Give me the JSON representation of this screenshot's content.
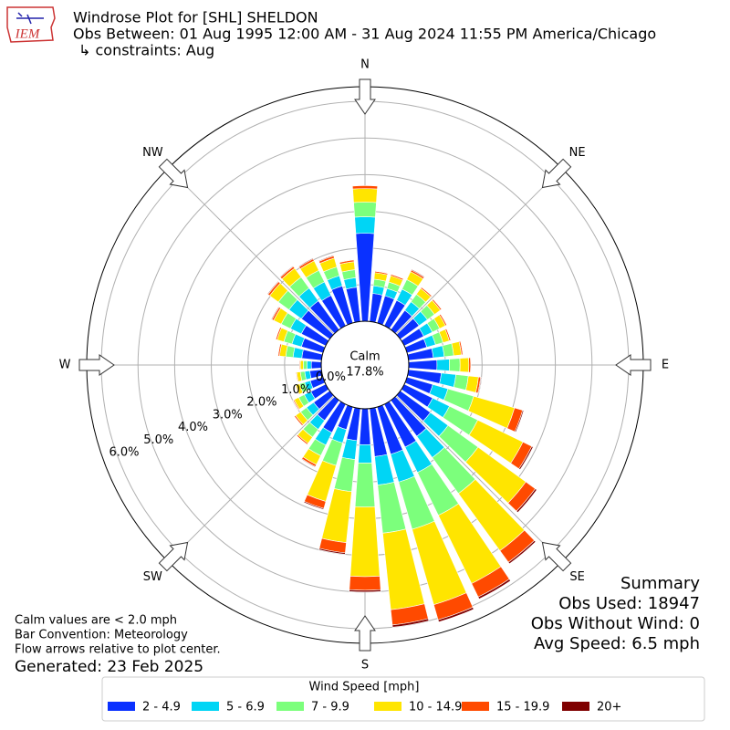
{
  "chart_data": {
    "type": "windrose",
    "title": "Windrose Plot for [SHL] SHELDON",
    "subtitle": "Obs Between: 01 Aug 1995 12:00 AM - 31 Aug 2024 11:55 PM America/Chicago",
    "constraints": "↳ constraints: Aug",
    "logo": "IEM",
    "compass_labels": [
      "N",
      "NE",
      "E",
      "SE",
      "S",
      "SW",
      "W",
      "NW"
    ],
    "rlim": [
      0,
      6.4
    ],
    "rticks": [
      {
        "value": 0,
        "label": "0.0%"
      },
      {
        "value": 1,
        "label": "1.0%"
      },
      {
        "value": 2,
        "label": "2.0%"
      },
      {
        "value": 3,
        "label": "3.0%"
      },
      {
        "value": 4,
        "label": "4.0%"
      },
      {
        "value": 5,
        "label": "5.0%"
      },
      {
        "value": 6,
        "label": "6.0%"
      }
    ],
    "grid": true,
    "calm": {
      "label": "Calm",
      "value": 17.8,
      "value_label": "17.8%"
    },
    "legend_title": "Wind Speed [mph]",
    "series": [
      {
        "name": "2 - 4.9",
        "color": "#0a31ff",
        "values": [
          2.4,
          0.77,
          0.77,
          0.77,
          0.65,
          0.63,
          0.59,
          0.56,
          0.68,
          0.77,
          0.9,
          0.73,
          0.86,
          1.01,
          1.21,
          1.3,
          1.34,
          1.32,
          0.98,
          0.88,
          0.64,
          0.86,
          0.68,
          0.54,
          0.45,
          0.36,
          0.32,
          0.27,
          0.54,
          0.61,
          0.74,
          0.95,
          0.97,
          0.92,
          1.05,
          0.94
        ]
      },
      {
        "name": "5 - 6.9",
        "color": "#00d5f5",
        "values": [
          0.45,
          0.21,
          0.21,
          0.34,
          0.29,
          0.28,
          0.26,
          0.25,
          0.3,
          0.34,
          0.4,
          0.43,
          0.51,
          0.6,
          0.72,
          0.77,
          0.79,
          0.78,
          0.5,
          0.52,
          0.38,
          0.38,
          0.3,
          0.24,
          0.2,
          0.16,
          0.14,
          0.12,
          0.24,
          0.27,
          0.33,
          0.42,
          0.43,
          0.41,
          0.29,
          0.26
        ]
      },
      {
        "name": "7 - 9.9",
        "color": "#7cff7c",
        "values": [
          0.4,
          0.18,
          0.18,
          0.29,
          0.25,
          0.24,
          0.22,
          0.21,
          0.26,
          0.29,
          0.34,
          0.73,
          0.86,
          1.01,
          1.21,
          1.3,
          1.34,
          1.32,
          1.2,
          0.88,
          0.64,
          0.32,
          0.26,
          0.2,
          0.17,
          0.14,
          0.12,
          0.1,
          0.2,
          0.23,
          0.28,
          0.36,
          0.37,
          0.35,
          0.25,
          0.22
        ]
      },
      {
        "name": "10 - 14.9",
        "color": "#ffe500",
        "values": [
          0.37,
          0.18,
          0.18,
          0.24,
          0.2,
          0.2,
          0.18,
          0.18,
          0.21,
          0.24,
          0.28,
          1.16,
          1.37,
          1.61,
          1.93,
          2.07,
          2.14,
          2.1,
          1.9,
          1.4,
          1.02,
          0.27,
          0.21,
          0.17,
          0.14,
          0.11,
          0.1,
          0.08,
          0.17,
          0.19,
          0.23,
          0.29,
          0.3,
          0.29,
          0.25,
          0.22
        ]
      },
      {
        "name": "15 - 19.9",
        "color": "#ff4a00",
        "values": [
          0.08,
          0.04,
          0.04,
          0.05,
          0.04,
          0.04,
          0.04,
          0.04,
          0.04,
          0.05,
          0.06,
          0.23,
          0.27,
          0.32,
          0.39,
          0.41,
          0.43,
          0.42,
          0.37,
          0.28,
          0.2,
          0.06,
          0.04,
          0.04,
          0.03,
          0.02,
          0.02,
          0.02,
          0.04,
          0.04,
          0.05,
          0.06,
          0.06,
          0.06,
          0.06,
          0.05
        ]
      },
      {
        "name": "20+",
        "color": "#7f0000",
        "values": [
          0,
          0.01,
          0.01,
          0.02,
          0.01,
          0.01,
          0.01,
          0.01,
          0.01,
          0.01,
          0.02,
          0.03,
          0.04,
          0.05,
          0.05,
          0.06,
          0.06,
          0.06,
          0.05,
          0.04,
          0.03,
          0.02,
          0.01,
          0.01,
          0.01,
          0.01,
          0,
          0,
          0.01,
          0.01,
          0.02,
          0.02,
          0.02,
          0.02,
          0.02,
          0.01
        ]
      }
    ],
    "notes": [
      "Calm values are < 2.0 mph",
      "Bar Convention: Meteorology",
      "Flow arrows relative to plot center."
    ],
    "generated": "Generated: 23 Feb 2025",
    "summary": {
      "title": "Summary",
      "lines": [
        "Obs Used: 18947",
        "Obs Without Wind: 0",
        "Avg Speed: 6.5 mph"
      ]
    }
  }
}
